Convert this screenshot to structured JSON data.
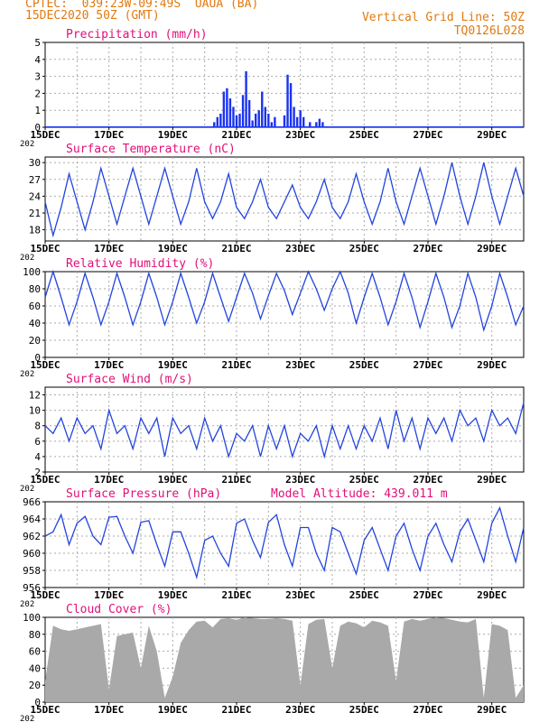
{
  "header": {
    "line1": "CPTEC:  039:23W-09:49S  UAUA (BA)",
    "line2": "15DEC2020 50Z (GMT)",
    "grid_note": "Vertical Grid Line: 50Z",
    "code": "TQ0126L028"
  },
  "x_axis": {
    "day_range": [
      15,
      30
    ],
    "ticks": [
      "15DEC",
      "17DEC",
      "19DEC",
      "21DEC",
      "23DEC",
      "25DEC",
      "27DEC",
      "29DEC"
    ],
    "year_label": "202"
  },
  "colors": {
    "line": "#2244dd",
    "bar": "#1a33ee",
    "cloud": "#a9a9a9",
    "title": "#e0107a",
    "header": "#e07a10"
  },
  "chart_data": [
    {
      "type": "bar",
      "title": "Precipitation (mm/h)",
      "ylim": [
        0,
        5
      ],
      "yticks": [
        0,
        1,
        2,
        3,
        4,
        5
      ],
      "x": [
        20.3,
        20.4,
        20.5,
        20.6,
        20.7,
        20.8,
        20.9,
        21.0,
        21.1,
        21.2,
        21.3,
        21.4,
        21.5,
        21.6,
        21.7,
        21.8,
        21.9,
        22.0,
        22.1,
        22.2,
        22.5,
        22.6,
        22.7,
        22.8,
        22.9,
        23.0,
        23.1,
        23.3,
        23.5,
        23.6,
        23.7
      ],
      "values": [
        0.3,
        0.6,
        0.8,
        2.1,
        2.3,
        1.7,
        1.2,
        0.7,
        0.8,
        1.9,
        3.3,
        1.6,
        0.4,
        0.8,
        1.0,
        2.1,
        1.2,
        0.8,
        0.3,
        0.6,
        0.7,
        3.1,
        2.6,
        1.2,
        0.6,
        1.0,
        0.6,
        0.3,
        0.3,
        0.5,
        0.3
      ]
    },
    {
      "type": "line",
      "title": "Surface Temperature (nC)",
      "ylim": [
        16,
        31
      ],
      "yticks": [
        18,
        21,
        24,
        27,
        30
      ],
      "x": [
        15.0,
        15.25,
        15.5,
        15.75,
        16.0,
        16.25,
        16.5,
        16.75,
        17.0,
        17.25,
        17.5,
        17.75,
        18.0,
        18.25,
        18.5,
        18.75,
        19.0,
        19.25,
        19.5,
        19.75,
        20.0,
        20.25,
        20.5,
        20.75,
        21.0,
        21.25,
        21.5,
        21.75,
        22.0,
        22.25,
        22.5,
        22.75,
        23.0,
        23.25,
        23.5,
        23.75,
        24.0,
        24.25,
        24.5,
        24.75,
        25.0,
        25.25,
        25.5,
        25.75,
        26.0,
        26.25,
        26.5,
        26.75,
        27.0,
        27.25,
        27.5,
        27.75,
        28.0,
        28.25,
        28.5,
        28.75,
        29.0,
        29.25,
        29.5,
        29.75,
        30.0
      ],
      "values": [
        23,
        17,
        22,
        28,
        23,
        18,
        23,
        29,
        24,
        19,
        24,
        29,
        24,
        19,
        24,
        29,
        24,
        19,
        23,
        29,
        23,
        20,
        23,
        28,
        22,
        20,
        23,
        27,
        22,
        20,
        23,
        26,
        22,
        20,
        23,
        27,
        22,
        20,
        23,
        28,
        23,
        19,
        23,
        29,
        23,
        19,
        24,
        29,
        24,
        19,
        24,
        30,
        24,
        19,
        24,
        30,
        24,
        19,
        24,
        29,
        24
      ]
    },
    {
      "type": "line",
      "title": "Relative Humidity (%)",
      "ylim": [
        0,
        100
      ],
      "yticks": [
        0,
        20,
        40,
        60,
        80,
        100
      ],
      "x": [
        15.0,
        15.25,
        15.5,
        15.75,
        16.0,
        16.25,
        16.5,
        16.75,
        17.0,
        17.25,
        17.5,
        17.75,
        18.0,
        18.25,
        18.5,
        18.75,
        19.0,
        19.25,
        19.5,
        19.75,
        20.0,
        20.25,
        20.5,
        20.75,
        21.0,
        21.25,
        21.5,
        21.75,
        22.0,
        22.25,
        22.5,
        22.75,
        23.0,
        23.25,
        23.5,
        23.75,
        24.0,
        24.25,
        24.5,
        24.75,
        25.0,
        25.25,
        25.5,
        25.75,
        26.0,
        26.25,
        26.5,
        26.75,
        27.0,
        27.25,
        27.5,
        27.75,
        28.0,
        28.25,
        28.5,
        28.75,
        29.0,
        29.25,
        29.5,
        29.75,
        30.0
      ],
      "values": [
        70,
        100,
        70,
        38,
        65,
        98,
        70,
        38,
        65,
        98,
        70,
        38,
        65,
        98,
        70,
        38,
        65,
        98,
        70,
        40,
        65,
        98,
        70,
        42,
        70,
        98,
        75,
        45,
        72,
        98,
        78,
        50,
        75,
        100,
        80,
        55,
        80,
        100,
        75,
        40,
        70,
        98,
        70,
        38,
        65,
        98,
        70,
        35,
        65,
        98,
        70,
        35,
        60,
        98,
        70,
        32,
        60,
        98,
        70,
        38,
        60
      ]
    },
    {
      "type": "line",
      "title": "Surface Wind (m/s)",
      "ylim": [
        2,
        13
      ],
      "yticks": [
        2,
        4,
        6,
        8,
        10,
        12
      ],
      "x": [
        15.0,
        15.25,
        15.5,
        15.75,
        16.0,
        16.25,
        16.5,
        16.75,
        17.0,
        17.25,
        17.5,
        17.75,
        18.0,
        18.25,
        18.5,
        18.75,
        19.0,
        19.25,
        19.5,
        19.75,
        20.0,
        20.25,
        20.5,
        20.75,
        21.0,
        21.25,
        21.5,
        21.75,
        22.0,
        22.25,
        22.5,
        22.75,
        23.0,
        23.25,
        23.5,
        23.75,
        24.0,
        24.25,
        24.5,
        24.75,
        25.0,
        25.25,
        25.5,
        25.75,
        26.0,
        26.25,
        26.5,
        26.75,
        27.0,
        27.25,
        27.5,
        27.75,
        28.0,
        28.25,
        28.5,
        28.75,
        29.0,
        29.25,
        29.5,
        29.75,
        30.0
      ],
      "values": [
        8,
        7,
        9,
        6,
        9,
        7,
        8,
        5,
        10,
        7,
        8,
        5,
        9,
        7,
        9,
        4,
        9,
        7,
        8,
        5,
        9,
        6,
        8,
        4,
        7,
        6,
        8,
        4,
        8,
        5,
        8,
        4,
        7,
        6,
        8,
        4,
        8,
        5,
        8,
        5,
        8,
        6,
        9,
        5,
        10,
        6,
        9,
        5,
        9,
        7,
        9,
        6,
        10,
        8,
        9,
        6,
        10,
        8,
        9,
        7,
        11
      ]
    },
    {
      "type": "line",
      "title": "Surface Pressure (hPa)",
      "subtitle": "Model Altitude: 439.011 m",
      "ylim": [
        956,
        966
      ],
      "yticks": [
        956,
        958,
        960,
        962,
        964,
        966
      ],
      "x": [
        15.0,
        15.25,
        15.5,
        15.75,
        16.0,
        16.25,
        16.5,
        16.75,
        17.0,
        17.25,
        17.5,
        17.75,
        18.0,
        18.25,
        18.5,
        18.75,
        19.0,
        19.25,
        19.5,
        19.75,
        20.0,
        20.25,
        20.5,
        20.75,
        21.0,
        21.25,
        21.5,
        21.75,
        22.0,
        22.25,
        22.5,
        22.75,
        23.0,
        23.25,
        23.5,
        23.75,
        24.0,
        24.25,
        24.5,
        24.75,
        25.0,
        25.25,
        25.5,
        25.75,
        26.0,
        26.25,
        26.5,
        26.75,
        27.0,
        27.25,
        27.5,
        27.75,
        28.0,
        28.25,
        28.5,
        28.75,
        29.0,
        29.25,
        29.5,
        29.75,
        30.0
      ],
      "values": [
        962,
        962.5,
        964.5,
        961,
        963.5,
        964.3,
        962,
        961,
        964.2,
        964.3,
        962,
        960,
        963.6,
        963.8,
        961,
        958.5,
        962.5,
        962.5,
        960,
        957.2,
        961.5,
        962,
        960,
        958.5,
        963.5,
        964,
        961.5,
        959.5,
        963.6,
        964.5,
        961,
        958.5,
        963,
        963,
        960,
        958,
        963,
        962.5,
        960,
        957.6,
        961.5,
        963,
        960.5,
        958,
        962,
        963.5,
        960.5,
        958,
        962,
        963.5,
        961,
        959,
        962.5,
        964,
        961.5,
        959,
        963.5,
        965.3,
        962,
        959,
        963
      ]
    },
    {
      "type": "area",
      "title": "Cloud Cover (%)",
      "ylim": [
        0,
        100
      ],
      "yticks": [
        0,
        20,
        40,
        60,
        80,
        100
      ],
      "x": [
        15.0,
        15.25,
        15.5,
        15.75,
        16.0,
        16.25,
        16.5,
        16.75,
        17.0,
        17.25,
        17.5,
        17.75,
        18.0,
        18.25,
        18.5,
        18.75,
        19.0,
        19.25,
        19.5,
        19.75,
        20.0,
        20.25,
        20.5,
        20.75,
        21.0,
        21.25,
        21.5,
        21.75,
        22.0,
        22.25,
        22.5,
        22.75,
        23.0,
        23.25,
        23.5,
        23.75,
        24.0,
        24.25,
        24.5,
        24.75,
        25.0,
        25.25,
        25.5,
        25.75,
        26.0,
        26.25,
        26.5,
        26.75,
        27.0,
        27.25,
        27.5,
        27.75,
        28.0,
        28.25,
        28.5,
        28.75,
        29.0,
        29.25,
        29.5,
        29.75,
        30.0
      ],
      "values": [
        25,
        90,
        86,
        84,
        86,
        88,
        90,
        92,
        15,
        78,
        80,
        82,
        40,
        90,
        60,
        5,
        30,
        70,
        85,
        95,
        96,
        88,
        98,
        99,
        97,
        100,
        99,
        98,
        98,
        99,
        98,
        96,
        20,
        92,
        97,
        98,
        40,
        90,
        95,
        93,
        88,
        96,
        94,
        90,
        25,
        95,
        98,
        96,
        98,
        100,
        99,
        97,
        95,
        94,
        98,
        5,
        92,
        90,
        85,
        5,
        20
      ]
    }
  ]
}
